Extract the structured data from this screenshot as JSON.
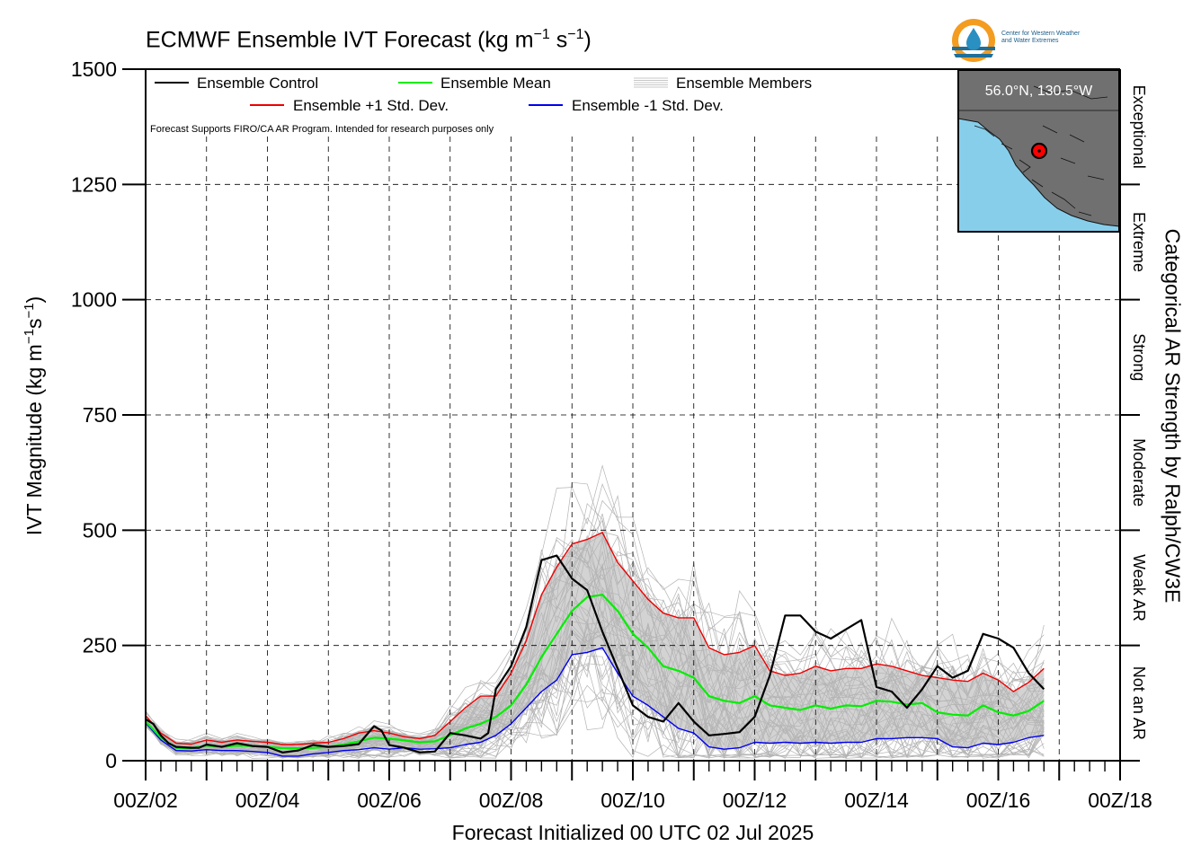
{
  "header": {
    "title_main": "ECMWF Ensemble IVT Forecast (kg m",
    "title_exp1": "−1",
    "title_mid": " s",
    "title_exp2": "−1",
    "title_end": ")"
  },
  "logo": {
    "line1": "Center for Western Weather",
    "line2": "and Water Extremes"
  },
  "note": "Forecast Supports FIRO/CA AR Program. Intended for research purposes only",
  "inset": {
    "location_label": "56.0°N, 130.5°W"
  },
  "colors": {
    "control": "#000000",
    "mean": "#00ee00",
    "plus_sd": "#ee0000",
    "minus_sd": "#0000ee",
    "members": "#b4b4b4",
    "spread_fill": "#d3d3d3",
    "land": "#707070",
    "ocean": "#87ceeb",
    "marker": "#ff0000"
  },
  "chart_data": {
    "type": "line",
    "title": "ECMWF Ensemble IVT Forecast (kg m−1 s−1)",
    "xlabel": "Forecast Initialized 00 UTC 02 Jul 2025",
    "ylabel_main": "IVT Magnitude (kg m",
    "ylabel_exp1": "−1",
    "ylabel_mid": "s",
    "ylabel_exp2": "−1",
    "ylabel_end": ")",
    "right_axis_label": "Categorical AR Strength by Ralph/CW3E",
    "ylim": [
      0,
      1500
    ],
    "yticks": [
      0,
      250,
      500,
      750,
      1000,
      1250,
      1500
    ],
    "xlim": [
      2,
      18
    ],
    "x_unit": "day of Jul 2025 (UTC)",
    "xticks": [
      {
        "day": 2,
        "label": "00Z/02"
      },
      {
        "day": 4,
        "label": "00Z/04"
      },
      {
        "day": 6,
        "label": "00Z/06"
      },
      {
        "day": 8,
        "label": "00Z/08"
      },
      {
        "day": 10,
        "label": "00Z/10"
      },
      {
        "day": 12,
        "label": "00Z/12"
      },
      {
        "day": 14,
        "label": "00Z/14"
      },
      {
        "day": 16,
        "label": "00Z/16"
      },
      {
        "day": 18,
        "label": "00Z/18"
      }
    ],
    "ar_categories": [
      {
        "label": "Not an AR",
        "range": [
          0,
          250
        ]
      },
      {
        "label": "Weak AR",
        "range": [
          250,
          500
        ]
      },
      {
        "label": "Moderate",
        "range": [
          500,
          750
        ]
      },
      {
        "label": "Strong",
        "range": [
          750,
          1000
        ]
      },
      {
        "label": "Extreme",
        "range": [
          1000,
          1250
        ]
      },
      {
        "label": "Exceptional",
        "range": [
          1250,
          1500
        ]
      }
    ],
    "legend": {
      "placement": "top-left",
      "control": "Ensemble Control",
      "mean": "Ensemble Mean",
      "members": "Ensemble Members",
      "plus_sd": "Ensemble +1 Std. Dev.",
      "minus_sd": "Ensemble -1 Std. Dev."
    },
    "series": [
      {
        "key": "control",
        "name": "Ensemble Control",
        "color": "#000000",
        "points": [
          [
            2.0,
            90
          ],
          [
            2.125,
            80
          ],
          [
            2.25,
            55
          ],
          [
            2.375,
            38
          ],
          [
            2.5,
            30
          ],
          [
            2.75,
            28
          ],
          [
            2.875,
            28
          ],
          [
            3.0,
            35
          ],
          [
            3.25,
            30
          ],
          [
            3.5,
            38
          ],
          [
            3.75,
            32
          ],
          [
            4.0,
            30
          ],
          [
            4.25,
            18
          ],
          [
            4.5,
            22
          ],
          [
            4.75,
            34
          ],
          [
            5.0,
            30
          ],
          [
            5.25,
            32
          ],
          [
            5.5,
            36
          ],
          [
            5.75,
            75
          ],
          [
            5.875,
            65
          ],
          [
            6.0,
            34
          ],
          [
            6.25,
            28
          ],
          [
            6.5,
            18
          ],
          [
            6.75,
            20
          ],
          [
            7.0,
            60
          ],
          [
            7.25,
            55
          ],
          [
            7.5,
            48
          ],
          [
            7.625,
            60
          ],
          [
            7.75,
            155
          ],
          [
            8.0,
            205
          ],
          [
            8.25,
            290
          ],
          [
            8.5,
            435
          ],
          [
            8.75,
            445
          ],
          [
            9.0,
            395
          ],
          [
            9.25,
            370
          ],
          [
            9.5,
            280
          ],
          [
            9.75,
            200
          ],
          [
            10.0,
            120
          ],
          [
            10.25,
            95
          ],
          [
            10.5,
            85
          ],
          [
            10.75,
            125
          ],
          [
            11.0,
            85
          ],
          [
            11.25,
            55
          ],
          [
            11.5,
            58
          ],
          [
            11.75,
            62
          ],
          [
            12.0,
            95
          ],
          [
            12.25,
            185
          ],
          [
            12.5,
            315
          ],
          [
            12.75,
            315
          ],
          [
            13.0,
            280
          ],
          [
            13.25,
            265
          ],
          [
            13.5,
            285
          ],
          [
            13.75,
            305
          ],
          [
            14.0,
            160
          ],
          [
            14.25,
            150
          ],
          [
            14.5,
            115
          ],
          [
            14.75,
            155
          ],
          [
            15.0,
            205
          ],
          [
            15.25,
            180
          ],
          [
            15.5,
            195
          ],
          [
            15.75,
            275
          ],
          [
            16.0,
            265
          ],
          [
            16.25,
            245
          ],
          [
            16.5,
            190
          ],
          [
            16.75,
            155
          ]
        ]
      },
      {
        "key": "mean",
        "name": "Ensemble Mean",
        "color": "#00ee00",
        "points": [
          [
            2.0,
            85
          ],
          [
            2.25,
            50
          ],
          [
            2.5,
            28
          ],
          [
            2.75,
            27
          ],
          [
            3.0,
            33
          ],
          [
            3.25,
            30
          ],
          [
            3.5,
            33
          ],
          [
            3.75,
            32
          ],
          [
            4.0,
            30
          ],
          [
            4.25,
            27
          ],
          [
            4.5,
            27
          ],
          [
            4.75,
            28
          ],
          [
            5.0,
            30
          ],
          [
            5.25,
            35
          ],
          [
            5.5,
            42
          ],
          [
            5.75,
            50
          ],
          [
            6.0,
            48
          ],
          [
            6.25,
            44
          ],
          [
            6.5,
            40
          ],
          [
            6.75,
            42
          ],
          [
            7.0,
            55
          ],
          [
            7.25,
            70
          ],
          [
            7.5,
            80
          ],
          [
            7.75,
            95
          ],
          [
            8.0,
            120
          ],
          [
            8.25,
            165
          ],
          [
            8.5,
            225
          ],
          [
            8.75,
            275
          ],
          [
            9.0,
            325
          ],
          [
            9.25,
            355
          ],
          [
            9.5,
            360
          ],
          [
            9.75,
            325
          ],
          [
            10.0,
            275
          ],
          [
            10.25,
            245
          ],
          [
            10.5,
            205
          ],
          [
            10.75,
            195
          ],
          [
            11.0,
            180
          ],
          [
            11.25,
            140
          ],
          [
            11.5,
            130
          ],
          [
            11.75,
            125
          ],
          [
            12.0,
            140
          ],
          [
            12.25,
            120
          ],
          [
            12.5,
            115
          ],
          [
            12.75,
            110
          ],
          [
            13.0,
            120
          ],
          [
            13.25,
            113
          ],
          [
            13.5,
            120
          ],
          [
            13.75,
            118
          ],
          [
            14.0,
            130
          ],
          [
            14.25,
            128
          ],
          [
            14.5,
            122
          ],
          [
            14.75,
            125
          ],
          [
            15.0,
            105
          ],
          [
            15.25,
            100
          ],
          [
            15.5,
            98
          ],
          [
            15.75,
            120
          ],
          [
            16.0,
            105
          ],
          [
            16.25,
            98
          ],
          [
            16.5,
            108
          ],
          [
            16.75,
            130
          ]
        ]
      },
      {
        "key": "plus_sd",
        "name": "Ensemble +1 Std. Dev.",
        "color": "#ee0000",
        "points": [
          [
            2.0,
            98
          ],
          [
            2.25,
            60
          ],
          [
            2.5,
            38
          ],
          [
            2.75,
            36
          ],
          [
            3.0,
            45
          ],
          [
            3.25,
            40
          ],
          [
            3.5,
            45
          ],
          [
            3.75,
            42
          ],
          [
            4.0,
            40
          ],
          [
            4.25,
            35
          ],
          [
            4.5,
            35
          ],
          [
            4.75,
            38
          ],
          [
            5.0,
            40
          ],
          [
            5.25,
            48
          ],
          [
            5.5,
            60
          ],
          [
            5.75,
            65
          ],
          [
            6.0,
            60
          ],
          [
            6.25,
            52
          ],
          [
            6.5,
            48
          ],
          [
            6.75,
            55
          ],
          [
            7.0,
            85
          ],
          [
            7.25,
            115
          ],
          [
            7.5,
            140
          ],
          [
            7.75,
            140
          ],
          [
            8.0,
            190
          ],
          [
            8.25,
            260
          ],
          [
            8.5,
            360
          ],
          [
            8.75,
            420
          ],
          [
            9.0,
            470
          ],
          [
            9.25,
            480
          ],
          [
            9.5,
            495
          ],
          [
            9.75,
            430
          ],
          [
            10.0,
            390
          ],
          [
            10.25,
            350
          ],
          [
            10.5,
            320
          ],
          [
            10.75,
            310
          ],
          [
            11.0,
            310
          ],
          [
            11.25,
            245
          ],
          [
            11.5,
            230
          ],
          [
            11.75,
            235
          ],
          [
            12.0,
            250
          ],
          [
            12.25,
            195
          ],
          [
            12.5,
            185
          ],
          [
            12.75,
            190
          ],
          [
            13.0,
            205
          ],
          [
            13.25,
            195
          ],
          [
            13.5,
            200
          ],
          [
            13.75,
            200
          ],
          [
            14.0,
            210
          ],
          [
            14.25,
            205
          ],
          [
            14.5,
            195
          ],
          [
            14.75,
            185
          ],
          [
            15.0,
            180
          ],
          [
            15.25,
            175
          ],
          [
            15.5,
            172
          ],
          [
            15.75,
            190
          ],
          [
            16.0,
            175
          ],
          [
            16.25,
            150
          ],
          [
            16.5,
            170
          ],
          [
            16.75,
            200
          ]
        ]
      },
      {
        "key": "minus_sd",
        "name": "Ensemble -1 Std. Dev.",
        "color": "#0000ee",
        "points": [
          [
            2.0,
            82
          ],
          [
            2.25,
            45
          ],
          [
            2.5,
            22
          ],
          [
            2.75,
            21
          ],
          [
            3.0,
            24
          ],
          [
            3.25,
            22
          ],
          [
            3.5,
            22
          ],
          [
            3.75,
            20
          ],
          [
            4.0,
            18
          ],
          [
            4.25,
            10
          ],
          [
            4.5,
            10
          ],
          [
            4.75,
            15
          ],
          [
            5.0,
            18
          ],
          [
            5.25,
            22
          ],
          [
            5.5,
            24
          ],
          [
            5.75,
            28
          ],
          [
            6.0,
            25
          ],
          [
            6.25,
            28
          ],
          [
            6.5,
            25
          ],
          [
            6.75,
            26
          ],
          [
            7.0,
            28
          ],
          [
            7.25,
            35
          ],
          [
            7.5,
            40
          ],
          [
            7.75,
            55
          ],
          [
            8.0,
            80
          ],
          [
            8.25,
            115
          ],
          [
            8.5,
            150
          ],
          [
            8.75,
            175
          ],
          [
            9.0,
            230
          ],
          [
            9.25,
            235
          ],
          [
            9.5,
            245
          ],
          [
            9.75,
            190
          ],
          [
            10.0,
            140
          ],
          [
            10.25,
            120
          ],
          [
            10.5,
            95
          ],
          [
            10.75,
            70
          ],
          [
            11.0,
            60
          ],
          [
            11.25,
            30
          ],
          [
            11.5,
            25
          ],
          [
            11.75,
            28
          ],
          [
            12.0,
            40
          ],
          [
            12.25,
            38
          ],
          [
            12.5,
            40
          ],
          [
            12.75,
            38
          ],
          [
            13.0,
            40
          ],
          [
            13.25,
            38
          ],
          [
            13.5,
            40
          ],
          [
            13.75,
            40
          ],
          [
            14.0,
            48
          ],
          [
            14.25,
            48
          ],
          [
            14.5,
            50
          ],
          [
            14.75,
            50
          ],
          [
            15.0,
            48
          ],
          [
            15.25,
            30
          ],
          [
            15.5,
            28
          ],
          [
            15.75,
            38
          ],
          [
            16.0,
            35
          ],
          [
            16.25,
            40
          ],
          [
            16.5,
            50
          ],
          [
            16.75,
            55
          ]
        ]
      }
    ],
    "members_shown": "ensemble members as thin grey lines, spread mostly between the ±1 std. dev. curves; highest member peaks near 630 kg m−1 s−1 around 00Z/09 and 00Z/10"
  }
}
